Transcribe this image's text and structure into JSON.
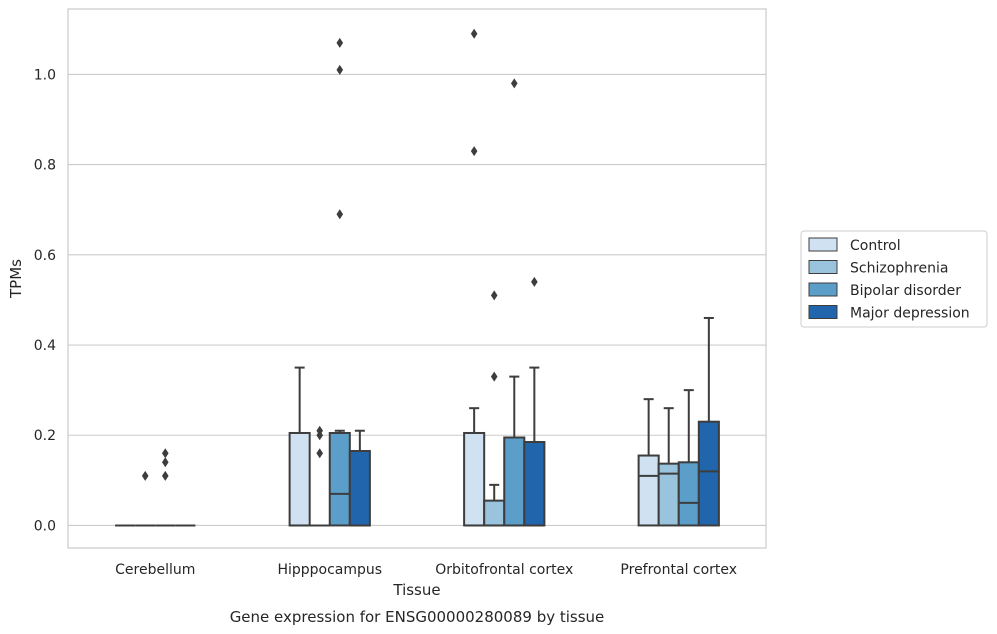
{
  "chart_data": {
    "type": "box",
    "caption": "Gene expression for ENSG00000280089 by tissue",
    "xlabel": "Tissue",
    "ylabel": "TPMs",
    "ylim": [
      -0.05,
      1.145
    ],
    "yticks": [
      0.0,
      0.2,
      0.4,
      0.6,
      0.8,
      1.0
    ],
    "ytick_labels": [
      "0.0",
      "0.2",
      "0.4",
      "0.6",
      "0.8",
      "1.0"
    ],
    "grid": "horizontal",
    "legend_position": "right",
    "categories": [
      "Cerebellum",
      "Hipppocampus",
      "Orbitofrontal cortex",
      "Prefrontal cortex"
    ],
    "series": [
      {
        "name": "Control",
        "color": "#d0e1f2",
        "boxes": [
          {
            "q1": 0,
            "median": 0,
            "q3": 0,
            "whisker_low": 0,
            "whisker_high": 0,
            "outliers": []
          },
          {
            "q1": 0,
            "median": 0,
            "q3": 0.205,
            "whisker_low": 0,
            "whisker_high": 0.35,
            "outliers": []
          },
          {
            "q1": 0,
            "median": 0,
            "q3": 0.205,
            "whisker_low": 0,
            "whisker_high": 0.26,
            "outliers": [
              0.83,
              1.09
            ]
          },
          {
            "q1": 0,
            "median": 0.11,
            "q3": 0.155,
            "whisker_low": 0,
            "whisker_high": 0.28,
            "outliers": []
          }
        ]
      },
      {
        "name": "Schizophrenia",
        "color": "#9ac3de",
        "boxes": [
          {
            "q1": 0,
            "median": 0,
            "q3": 0,
            "whisker_low": 0,
            "whisker_high": 0,
            "outliers": [
              0.11
            ]
          },
          {
            "q1": 0,
            "median": 0,
            "q3": 0,
            "whisker_low": 0,
            "whisker_high": 0,
            "outliers": [
              0.16,
              0.2,
              0.21
            ]
          },
          {
            "q1": 0,
            "median": 0,
            "q3": 0.055,
            "whisker_low": 0,
            "whisker_high": 0.09,
            "outliers": [
              0.33,
              0.51
            ]
          },
          {
            "q1": 0,
            "median": 0.115,
            "q3": 0.137,
            "whisker_low": 0,
            "whisker_high": 0.26,
            "outliers": []
          }
        ]
      },
      {
        "name": "Bipolar disorder",
        "color": "#5a9ec9",
        "boxes": [
          {
            "q1": 0,
            "median": 0,
            "q3": 0,
            "whisker_low": 0,
            "whisker_high": 0,
            "outliers": [
              0.11,
              0.14,
              0.16
            ]
          },
          {
            "q1": 0,
            "median": 0.07,
            "q3": 0.205,
            "whisker_low": 0,
            "whisker_high": 0.21,
            "outliers": [
              0.69,
              1.01,
              1.07
            ]
          },
          {
            "q1": 0,
            "median": 0,
            "q3": 0.195,
            "whisker_low": 0,
            "whisker_high": 0.33,
            "outliers": [
              0.98
            ]
          },
          {
            "q1": 0,
            "median": 0.05,
            "q3": 0.14,
            "whisker_low": 0,
            "whisker_high": 0.3,
            "outliers": []
          }
        ]
      },
      {
        "name": "Major depression",
        "color": "#2166ac",
        "boxes": [
          {
            "q1": 0,
            "median": 0,
            "q3": 0,
            "whisker_low": 0,
            "whisker_high": 0,
            "outliers": []
          },
          {
            "q1": 0,
            "median": 0,
            "q3": 0.165,
            "whisker_low": 0,
            "whisker_high": 0.21,
            "outliers": []
          },
          {
            "q1": 0,
            "median": 0,
            "q3": 0.185,
            "whisker_low": 0,
            "whisker_high": 0.35,
            "outliers": [
              0.54
            ]
          },
          {
            "q1": 0,
            "median": 0.12,
            "q3": 0.23,
            "whisker_low": 0,
            "whisker_high": 0.46,
            "outliers": []
          }
        ]
      }
    ]
  }
}
